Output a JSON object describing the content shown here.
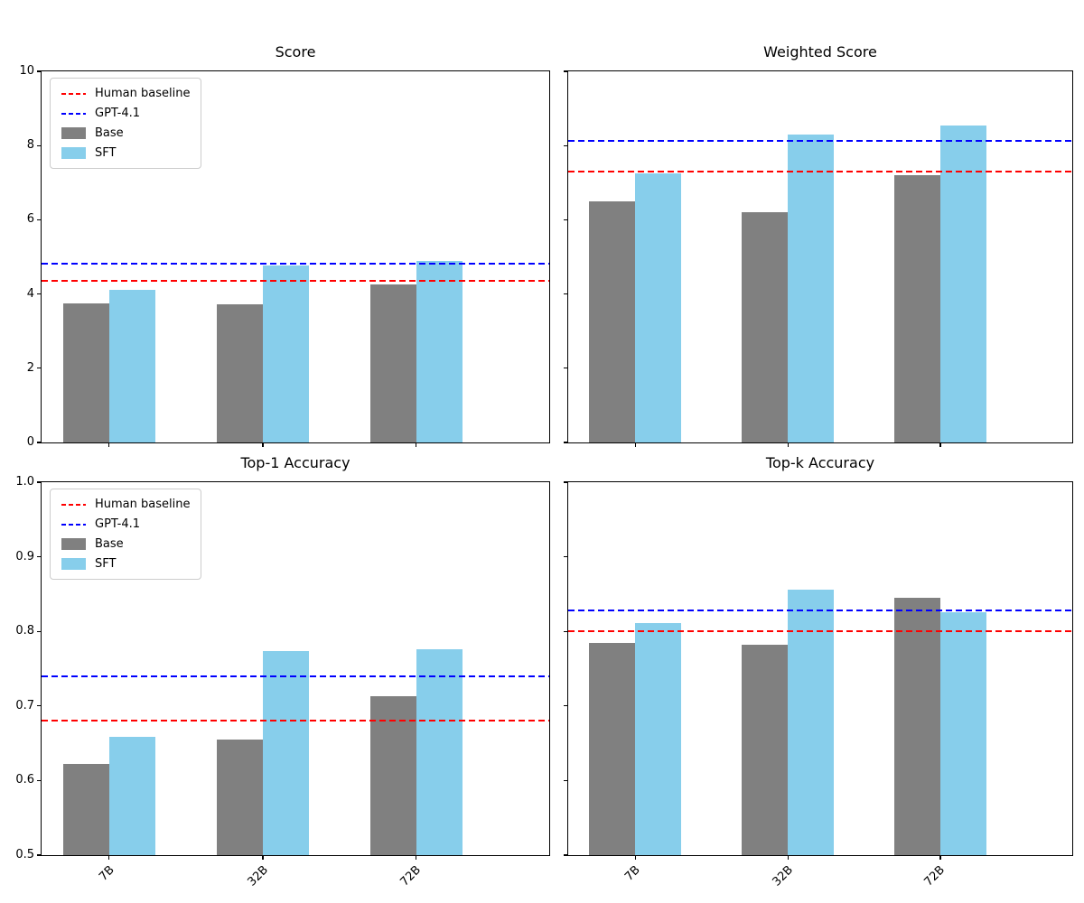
{
  "colors": {
    "human_line": "#ff0000",
    "gpt41_line": "#0000ff",
    "base_bar": "#808080",
    "sft_bar": "#87ceeb",
    "spine": "#000000",
    "background": "#ffffff",
    "legend_border": "#cccccc",
    "text": "#000000"
  },
  "legend": {
    "items": [
      {
        "key": "human-baseline",
        "label": "Human baseline",
        "swatch": "dashed-line",
        "color_key": "human_line"
      },
      {
        "key": "gpt-4-1",
        "label": "GPT-4.1",
        "swatch": "dashed-line",
        "color_key": "gpt41_line"
      },
      {
        "key": "base",
        "label": "Base",
        "swatch": "rect",
        "color_key": "base_bar"
      },
      {
        "key": "sft",
        "label": "SFT",
        "swatch": "rect",
        "color_key": "sft_bar"
      }
    ]
  },
  "chart_data": [
    {
      "type": "bar",
      "title": "Score",
      "categories": [
        "7B",
        "32B",
        "72B"
      ],
      "ylim": [
        0,
        10
      ],
      "ytick_values": [
        0,
        2,
        4,
        6,
        8,
        10
      ],
      "ytick_labels": [
        "0",
        "2",
        "4",
        "6",
        "8",
        "10"
      ],
      "show_ytick_labels": true,
      "show_xtick_labels": false,
      "show_legend": true,
      "grid": false,
      "legend_position": "upper-left",
      "series": [
        {
          "name": "Base",
          "color_key": "base_bar",
          "values": [
            3.75,
            3.72,
            4.27
          ]
        },
        {
          "name": "SFT",
          "color_key": "sft_bar",
          "values": [
            4.12,
            4.76,
            4.88
          ]
        }
      ],
      "hlines": [
        {
          "label": "Human baseline",
          "color_key": "human_line",
          "value": 4.35
        },
        {
          "label": "GPT-4.1",
          "color_key": "gpt41_line",
          "value": 4.82
        }
      ]
    },
    {
      "type": "bar",
      "title": "Weighted Score",
      "categories": [
        "7B",
        "32B",
        "72B"
      ],
      "ylim": [
        0,
        10
      ],
      "ytick_values": [
        0,
        2,
        4,
        6,
        8,
        10
      ],
      "ytick_labels": [
        "0",
        "2",
        "4",
        "6",
        "8",
        "10"
      ],
      "show_ytick_labels": false,
      "show_xtick_labels": false,
      "show_legend": false,
      "grid": false,
      "series": [
        {
          "name": "Base",
          "color_key": "base_bar",
          "values": [
            6.5,
            6.2,
            7.2
          ]
        },
        {
          "name": "SFT",
          "color_key": "sft_bar",
          "values": [
            7.25,
            8.3,
            8.53
          ]
        }
      ],
      "hlines": [
        {
          "label": "Human baseline",
          "color_key": "human_line",
          "value": 7.3
        },
        {
          "label": "GPT-4.1",
          "color_key": "gpt41_line",
          "value": 8.12
        }
      ]
    },
    {
      "type": "bar",
      "title": "Top-1 Accuracy",
      "categories": [
        "7B",
        "32B",
        "72B"
      ],
      "ylim": [
        0.5,
        1.0
      ],
      "ytick_values": [
        0.5,
        0.6,
        0.7,
        0.8,
        0.9,
        1.0
      ],
      "ytick_labels": [
        "0.5",
        "0.6",
        "0.7",
        "0.8",
        "0.9",
        "1.0"
      ],
      "show_ytick_labels": true,
      "show_xtick_labels": true,
      "show_legend": true,
      "grid": false,
      "legend_position": "upper-left",
      "series": [
        {
          "name": "Base",
          "color_key": "base_bar",
          "values": [
            0.622,
            0.655,
            0.713
          ]
        },
        {
          "name": "SFT",
          "color_key": "sft_bar",
          "values": [
            0.659,
            0.774,
            0.776
          ]
        }
      ],
      "hlines": [
        {
          "label": "Human baseline",
          "color_key": "human_line",
          "value": 0.68
        },
        {
          "label": "GPT-4.1",
          "color_key": "gpt41_line",
          "value": 0.74
        }
      ]
    },
    {
      "type": "bar",
      "title": "Top-k Accuracy",
      "categories": [
        "7B",
        "32B",
        "72B"
      ],
      "ylim": [
        0.5,
        1.0
      ],
      "ytick_values": [
        0.5,
        0.6,
        0.7,
        0.8,
        0.9,
        1.0
      ],
      "ytick_labels": [
        "0.5",
        "0.6",
        "0.7",
        "0.8",
        "0.9",
        "1.0"
      ],
      "show_ytick_labels": false,
      "show_xtick_labels": true,
      "show_legend": false,
      "grid": false,
      "series": [
        {
          "name": "Base",
          "color_key": "base_bar",
          "values": [
            0.784,
            0.782,
            0.845
          ]
        },
        {
          "name": "SFT",
          "color_key": "sft_bar",
          "values": [
            0.811,
            0.856,
            0.826
          ]
        }
      ],
      "hlines": [
        {
          "label": "Human baseline",
          "color_key": "human_line",
          "value": 0.8
        },
        {
          "label": "GPT-4.1",
          "color_key": "gpt41_line",
          "value": 0.828
        }
      ]
    }
  ]
}
